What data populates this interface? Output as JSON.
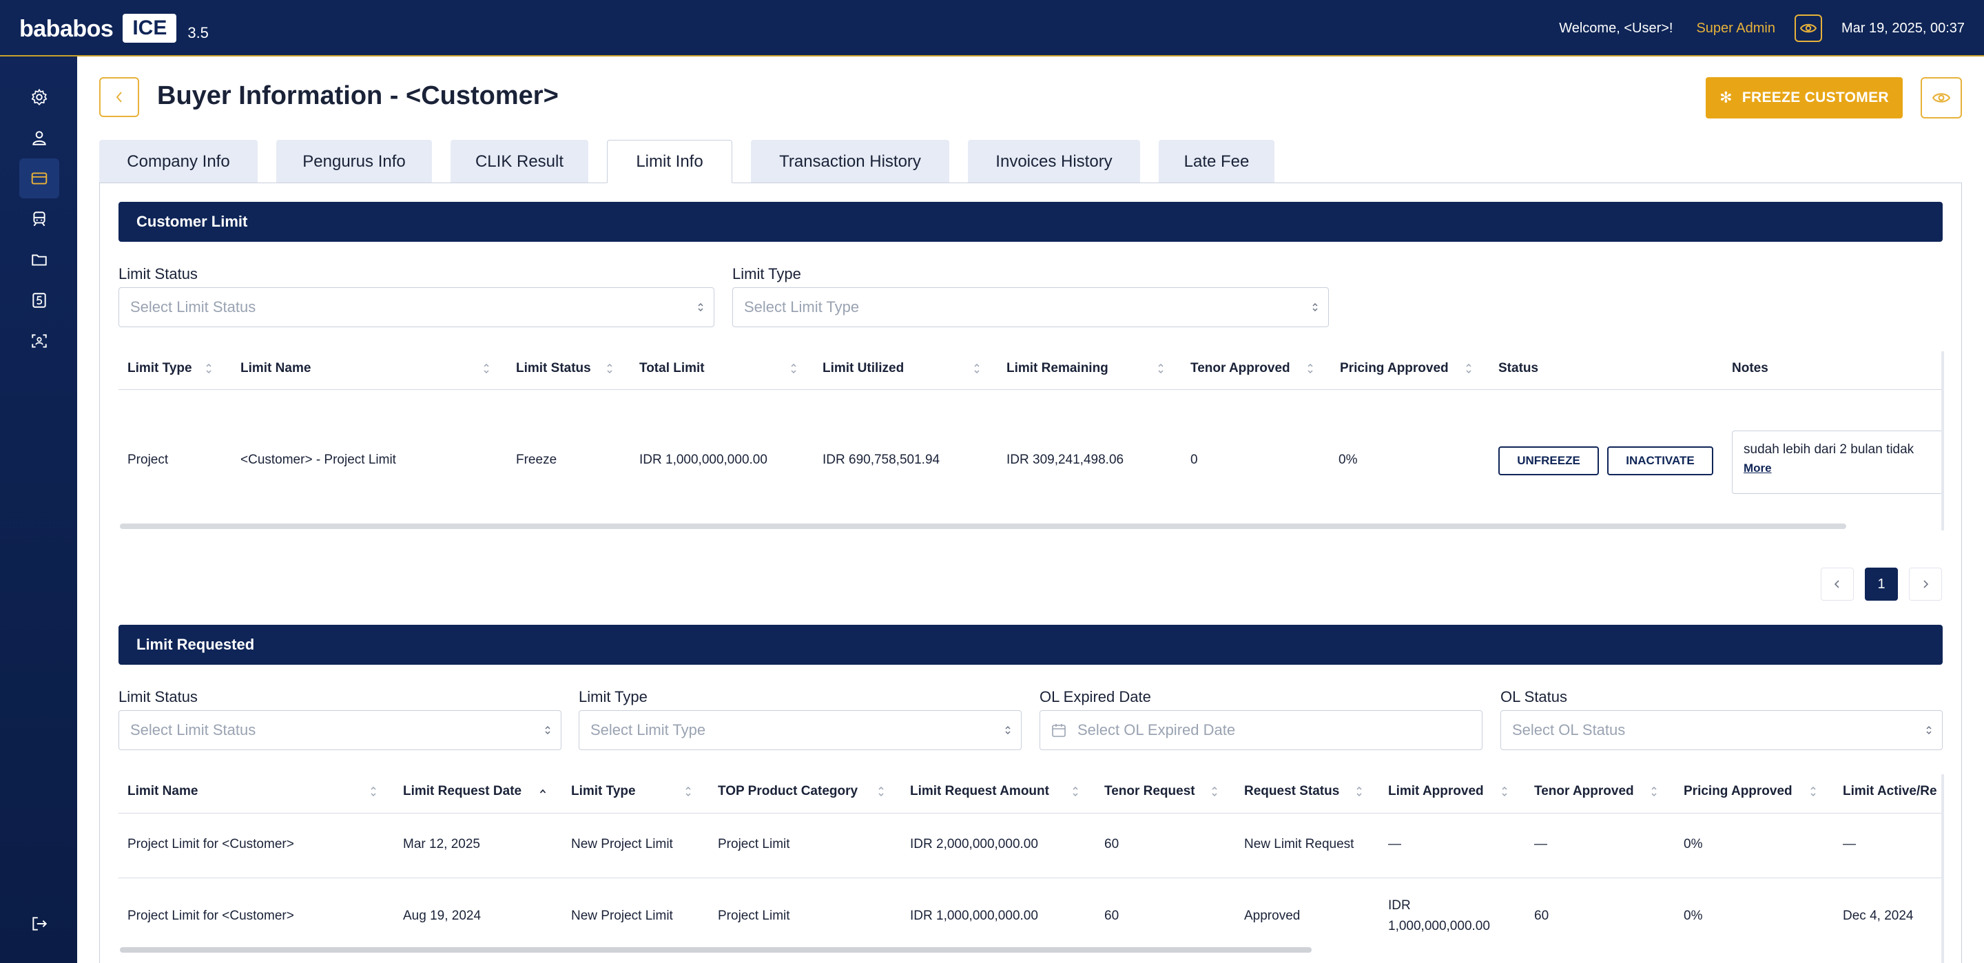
{
  "app": {
    "brand": "bababos",
    "product": "ICE",
    "version": "3.5"
  },
  "topbar": {
    "welcome": "Welcome, <User>!",
    "role": "Super Admin",
    "datetime": "Mar 19, 2025, 00:37"
  },
  "sidebar": {
    "items": [
      "gear-icon",
      "user-icon",
      "card-icon",
      "train-icon",
      "folder-icon",
      "number-5-icon",
      "scan-user-icon",
      "logout-icon"
    ],
    "active_index": 2
  },
  "page": {
    "title": "Buyer Information - <Customer>",
    "freeze_label": "FREEZE CUSTOMER"
  },
  "tabs": [
    {
      "label": "Company Info"
    },
    {
      "label": "Pengurus Info"
    },
    {
      "label": "CLIK Result"
    },
    {
      "label": "Limit Info"
    },
    {
      "label": "Transaction History"
    },
    {
      "label": "Invoices History"
    },
    {
      "label": "Late Fee"
    }
  ],
  "active_tab": "Limit Info",
  "customer_limit": {
    "title": "Customer Limit",
    "filters": {
      "status_label": "Limit Status",
      "status_placeholder": "Select Limit Status",
      "type_label": "Limit Type",
      "type_placeholder": "Select Limit Type"
    },
    "columns": [
      "Limit Type",
      "Limit Name",
      "Limit Status",
      "Total Limit",
      "Limit Utilized",
      "Limit Remaining",
      "Tenor Approved",
      "Pricing Approved",
      "Status",
      "Notes"
    ],
    "rows": [
      {
        "limit_type": "Project",
        "limit_name": "<Customer> - Project Limit",
        "limit_status": "Freeze",
        "total_limit": "IDR 1,000,000,000.00",
        "limit_utilized": "IDR 690,758,501.94",
        "limit_remaining": "IDR 309,241,498.06",
        "tenor_approved": "0",
        "pricing_approved": "0%",
        "unfreeze_label": "UNFREEZE",
        "inactivate_label": "INACTIVATE",
        "notes": "sudah lebih dari 2 bulan tidak",
        "notes_more": "More"
      }
    ],
    "pagination": {
      "current": "1"
    }
  },
  "limit_requested": {
    "title": "Limit Requested",
    "filters": {
      "status_label": "Limit Status",
      "status_placeholder": "Select Limit Status",
      "type_label": "Limit Type",
      "type_placeholder": "Select Limit Type",
      "ol_date_label": "OL Expired Date",
      "ol_date_placeholder": "Select OL Expired Date",
      "ol_status_label": "OL Status",
      "ol_status_placeholder": "Select OL Status"
    },
    "columns": [
      "Limit Name",
      "Limit Request Date",
      "Limit Type",
      "TOP Product Category",
      "Limit Request Amount",
      "Tenor Request",
      "Request Status",
      "Limit Approved",
      "Tenor Approved",
      "Pricing Approved",
      "Limit Active/Re"
    ],
    "rows": [
      {
        "limit_name": "Project Limit for <Customer>",
        "request_date": "Mar 12, 2025",
        "limit_type": "New Project Limit",
        "top_category": "Project Limit",
        "request_amount": "IDR 2,000,000,000.00",
        "tenor_request": "60",
        "request_status": "New Limit Request",
        "limit_approved_1": "—",
        "limit_approved_2": "",
        "tenor_approved": "—",
        "pricing_approved": "0%",
        "limit_active": "—"
      },
      {
        "limit_name": "Project Limit for <Customer>",
        "request_date": "Aug 19, 2024",
        "limit_type": "New Project Limit",
        "top_category": "Project Limit",
        "request_amount": "IDR 1,000,000,000.00",
        "tenor_request": "60",
        "request_status": "Approved",
        "limit_approved_1": "IDR",
        "limit_approved_2": "1,000,000,000.00",
        "tenor_approved": "60",
        "pricing_approved": "0%",
        "limit_active": "Dec 4, 2024"
      }
    ]
  },
  "colors": {
    "navy": "#0f2557",
    "accent": "#e8a617"
  }
}
